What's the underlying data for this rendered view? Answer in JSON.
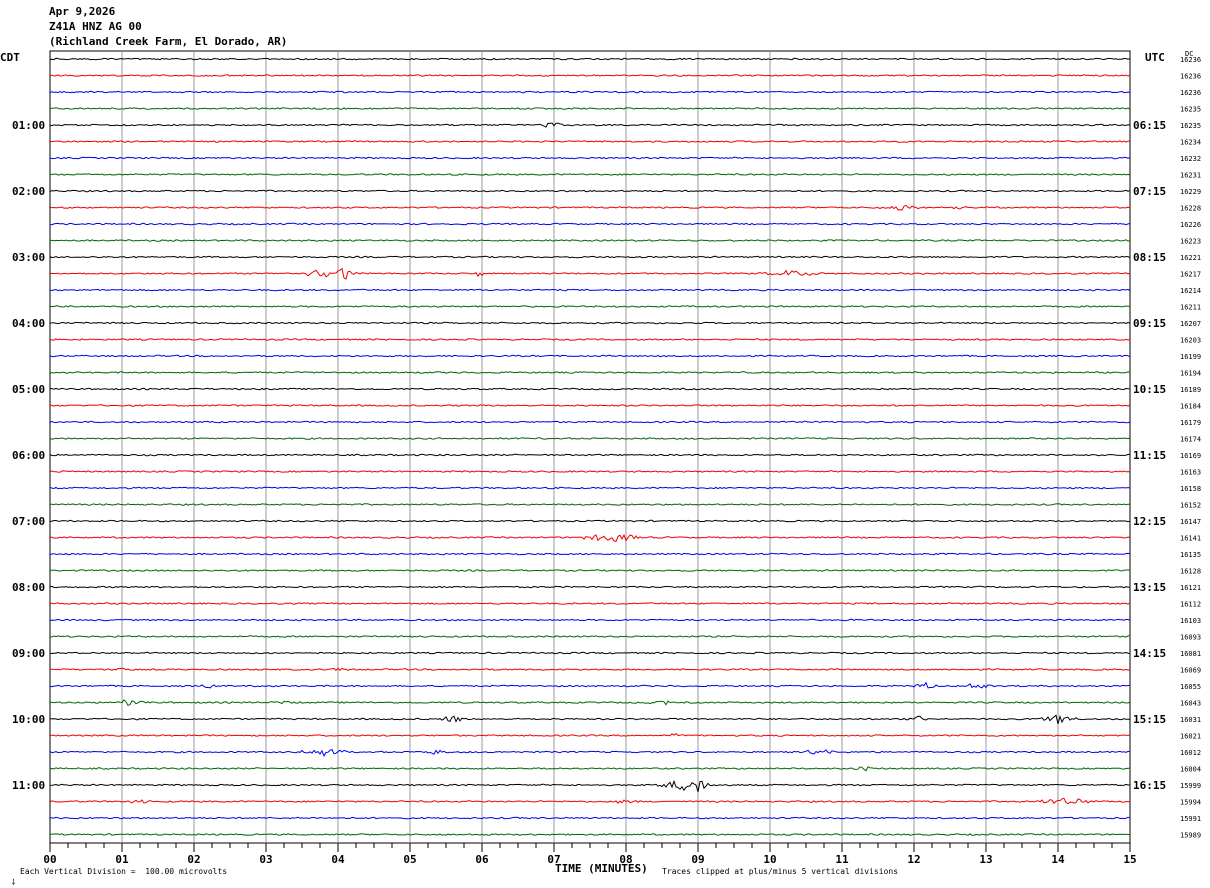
{
  "header": {
    "date": "Apr 9,2026",
    "station": "Z41A HNZ AG 00",
    "location": "(Richland Creek Farm, El Dorado, AR)"
  },
  "left_zone": "CDT",
  "right_zone": "UTC",
  "dc_label": "DC",
  "xlabel": "TIME (MINUTES)",
  "scale_note": "Each Vertical Division =  100.00 microvolts",
  "clip_note": "Traces clipped at plus/minus 5 vertical divisions",
  "colors": {
    "trace_cycle": [
      "#000000",
      "#ee0000",
      "#0000ee",
      "#006600"
    ],
    "grid": "#999999"
  },
  "chart_data": {
    "type": "line",
    "title": "Apr 9,2026 Z41A HNZ AG 00 (Richland Creek Farm, El Dorado, AR)",
    "xlabel": "TIME (MINUTES)",
    "x_ticks": [
      "00",
      "01",
      "02",
      "03",
      "04",
      "05",
      "06",
      "07",
      "08",
      "09",
      "10",
      "11",
      "12",
      "13",
      "14",
      "15"
    ],
    "xlim": [
      0,
      15
    ],
    "traces_per_hour": 4,
    "left_hour_labels": [
      "01:00",
      "02:00",
      "03:00",
      "04:00",
      "05:00",
      "06:00",
      "07:00",
      "08:00",
      "09:00",
      "10:00",
      "11:00"
    ],
    "right_hour_labels": [
      "06:15",
      "07:15",
      "08:15",
      "09:15",
      "10:15",
      "11:15",
      "12:15",
      "13:15",
      "14:15",
      "15:15",
      "16:15"
    ],
    "dc_offsets": [
      "16236",
      "16236",
      "16236",
      "16235",
      "16235",
      "16234",
      "16232",
      "16231",
      "16229",
      "16228",
      "16226",
      "16223",
      "16221",
      "16217",
      "16214",
      "16211",
      "16207",
      "16203",
      "16199",
      "16194",
      "16189",
      "16184",
      "16179",
      "16174",
      "16169",
      "16163",
      "16158",
      "16152",
      "16147",
      "16141",
      "16135",
      "16128",
      "16121",
      "16112",
      "16103",
      "16093",
      "16081",
      "16069",
      "16055",
      "16043",
      "16031",
      "16021",
      "16012",
      "16004",
      "15999",
      "15994",
      "15991",
      "15989"
    ],
    "events": [
      {
        "trace": 4,
        "minute": 7.0,
        "amp": 2.5,
        "dur": 0.3
      },
      {
        "trace": 9,
        "minute": 11.8,
        "amp": 3,
        "dur": 0.4
      },
      {
        "trace": 9,
        "minute": 12.6,
        "amp": 1.5,
        "dur": 0.3
      },
      {
        "trace": 13,
        "minute": 3.8,
        "amp": 5,
        "dur": 0.5
      },
      {
        "trace": 13,
        "minute": 4.1,
        "amp": 6,
        "dur": 0.15
      },
      {
        "trace": 13,
        "minute": 5.95,
        "amp": 5,
        "dur": 0.08
      },
      {
        "trace": 13,
        "minute": 10.3,
        "amp": 3,
        "dur": 0.5
      },
      {
        "trace": 29,
        "minute": 7.8,
        "amp": 4,
        "dur": 0.6
      },
      {
        "trace": 37,
        "minute": 1.0,
        "amp": 2,
        "dur": 0.2
      },
      {
        "trace": 37,
        "minute": 4.0,
        "amp": 2,
        "dur": 0.2
      },
      {
        "trace": 38,
        "minute": 2.2,
        "amp": 2,
        "dur": 0.15
      },
      {
        "trace": 38,
        "minute": 12.1,
        "amp": 4,
        "dur": 0.25
      },
      {
        "trace": 38,
        "minute": 12.9,
        "amp": 3,
        "dur": 0.3
      },
      {
        "trace": 39,
        "minute": 1.1,
        "amp": 3,
        "dur": 0.3
      },
      {
        "trace": 39,
        "minute": 3.3,
        "amp": 2,
        "dur": 0.3
      },
      {
        "trace": 39,
        "minute": 8.5,
        "amp": 3,
        "dur": 0.25
      },
      {
        "trace": 40,
        "minute": 5.6,
        "amp": 4,
        "dur": 0.2
      },
      {
        "trace": 40,
        "minute": 12.0,
        "amp": 4,
        "dur": 0.25
      },
      {
        "trace": 40,
        "minute": 14.0,
        "amp": 5,
        "dur": 0.3
      },
      {
        "trace": 41,
        "minute": 8.7,
        "amp": 2,
        "dur": 0.2
      },
      {
        "trace": 42,
        "minute": 3.8,
        "amp": 4,
        "dur": 0.4
      },
      {
        "trace": 42,
        "minute": 5.4,
        "amp": 3,
        "dur": 0.2
      },
      {
        "trace": 42,
        "minute": 10.7,
        "amp": 3,
        "dur": 0.3
      },
      {
        "trace": 43,
        "minute": 11.3,
        "amp": 2,
        "dur": 0.2
      },
      {
        "trace": 44,
        "minute": 8.8,
        "amp": 5,
        "dur": 0.5
      },
      {
        "trace": 44,
        "minute": 9.0,
        "amp": 6,
        "dur": 0.15
      },
      {
        "trace": 45,
        "minute": 1.2,
        "amp": 2,
        "dur": 0.2
      },
      {
        "trace": 45,
        "minute": 8.0,
        "amp": 2,
        "dur": 0.3
      },
      {
        "trace": 45,
        "minute": 14.1,
        "amp": 3,
        "dur": 0.6
      }
    ]
  }
}
